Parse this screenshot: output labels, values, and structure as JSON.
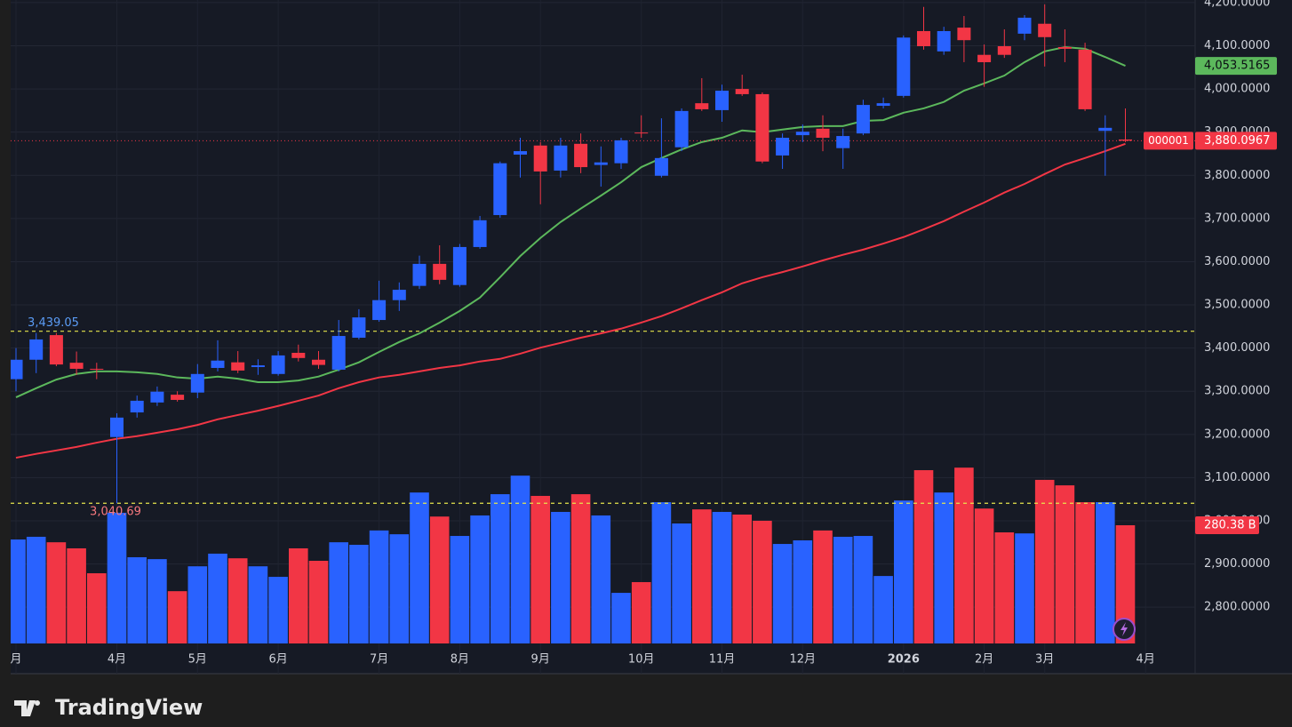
{
  "chart_data": {
    "type": "candlestick",
    "symbol": "000001",
    "brand": "TradingView",
    "ylim": [
      2716,
      4206
    ],
    "yticks": [
      {
        "value": 4200,
        "label": "4,200.0000"
      },
      {
        "value": 4100,
        "label": "4,100.0000"
      },
      {
        "value": 4000,
        "label": "4,000.0000"
      },
      {
        "value": 3900,
        "label": "3,900.0000"
      },
      {
        "value": 3800,
        "label": "3,800.0000"
      },
      {
        "value": 3700,
        "label": "3,700.0000"
      },
      {
        "value": 3600,
        "label": "3,600.0000"
      },
      {
        "value": 3500,
        "label": "3,500.0000"
      },
      {
        "value": 3400,
        "label": "3,400.0000"
      },
      {
        "value": 3300,
        "label": "3,300.0000"
      },
      {
        "value": 3200,
        "label": "3,200.0000"
      },
      {
        "value": 3100,
        "label": "3,100.0000"
      },
      {
        "value": 3000,
        "label": "3,000.0000"
      },
      {
        "value": 2900,
        "label": "2,900.0000"
      },
      {
        "value": 2800,
        "label": "2,800.0000"
      }
    ],
    "xticks": [
      {
        "value": 0,
        "label": "月"
      },
      {
        "value": 5,
        "label": "4月"
      },
      {
        "value": 9,
        "label": "5月"
      },
      {
        "value": 13,
        "label": "6月"
      },
      {
        "value": 18,
        "label": "7月"
      },
      {
        "value": 22,
        "label": "8月"
      },
      {
        "value": 26,
        "label": "9月"
      },
      {
        "value": 31,
        "label": "10月"
      },
      {
        "value": 35,
        "label": "11月"
      },
      {
        "value": 39,
        "label": "12月"
      },
      {
        "value": 44,
        "label": "2026"
      },
      {
        "value": 48,
        "label": "2月"
      },
      {
        "value": 51,
        "label": "3月"
      },
      {
        "value": 56,
        "label": "4月"
      }
    ],
    "grid": true,
    "up_color": "#2962ff",
    "down_color": "#f23645",
    "open": [
      3328,
      3373,
      3430,
      3366,
      3352,
      3194,
      3251,
      3274,
      3292,
      3297,
      3354,
      3367,
      3356,
      3340,
      3389,
      3373,
      3350,
      3424,
      3465,
      3511,
      3544,
      3595,
      3546,
      3634,
      3708,
      3848,
      3869,
      3811,
      3873,
      3824,
      3828,
      3899,
      3799,
      3865,
      3967,
      3951,
      4000,
      3988,
      3846,
      3893,
      3908,
      3863,
      3897,
      3961,
      3984,
      4134,
      4087,
      4142,
      4079,
      4099,
      4128,
      4151,
      4097,
      4091,
      3903,
      3883
    ],
    "high": [
      3400,
      3435,
      3435,
      3392,
      3366,
      3249,
      3290,
      3311,
      3300,
      3363,
      3418,
      3393,
      3374,
      3393,
      3408,
      3393,
      3465,
      3490,
      3556,
      3552,
      3614,
      3638,
      3641,
      3706,
      3832,
      3887,
      3877,
      3887,
      3897,
      3867,
      3887,
      3939,
      3932,
      3955,
      4025,
      4010,
      4033,
      3992,
      3897,
      3918,
      3939,
      3908,
      3975,
      3980,
      4124,
      4190,
      4144,
      4169,
      4103,
      4138,
      4171,
      4196,
      4138,
      4107,
      3939,
      3955
    ],
    "low": [
      3300,
      3342,
      3358,
      3338,
      3328,
      3040.69,
      3239,
      3266,
      3276,
      3284,
      3346,
      3342,
      3338,
      3336,
      3369,
      3352,
      3346,
      3420,
      3461,
      3486,
      3537,
      3548,
      3542,
      3630,
      3702,
      3795,
      3733,
      3795,
      3805,
      3774,
      3815,
      3887,
      3795,
      3856,
      3949,
      3924,
      3984,
      3828,
      3815,
      3877,
      3856,
      3815,
      3893,
      3955,
      3980,
      4091,
      4079,
      4062,
      4005,
      4072,
      4113,
      4052,
      4062,
      3949,
      3799,
      3877
    ],
    "close": [
      3373,
      3420,
      3362,
      3352,
      3350,
      3239,
      3278,
      3299,
      3280,
      3340,
      3371,
      3348,
      3360,
      3383,
      3377,
      3361,
      3428,
      3471,
      3511,
      3535,
      3595,
      3558,
      3634,
      3696,
      3828,
      3856,
      3809,
      3869,
      3819,
      3830,
      3881,
      3897,
      3840,
      3949,
      3953,
      3996,
      3988,
      3832,
      3887,
      3901,
      3887,
      3891,
      3963,
      3967,
      4119,
      4099,
      4134,
      4113,
      4062,
      4079,
      4165,
      4120,
      4093,
      3953,
      3910,
      3880.0967
    ],
    "last_price_label": "3,880.0967",
    "volume": {
      "values": [
        246.6,
        253,
        240,
        225.6,
        166.5,
        310,
        204.5,
        200,
        124,
        183,
        213,
        202,
        183,
        158,
        225.6,
        196,
        240,
        234,
        268,
        259,
        358,
        301,
        255,
        303.6,
        354,
        398,
        350,
        312,
        354,
        303.6,
        120,
        145.5,
        335,
        284.6,
        318,
        312,
        305.7,
        291,
        236,
        244.5,
        268,
        253,
        255,
        160,
        339,
        411,
        358,
        417,
        320,
        263.5,
        261,
        388,
        375,
        335,
        335,
        280.38
      ],
      "value_labels": [
        null,
        null,
        null,
        null,
        null,
        null,
        null,
        null,
        null,
        null,
        null,
        null,
        null,
        null,
        null,
        null,
        null,
        null,
        null,
        null,
        null,
        null,
        null,
        null,
        null,
        null,
        null,
        null,
        null,
        null,
        null,
        null,
        null,
        null,
        null,
        null,
        null,
        null,
        null,
        null,
        null,
        null,
        null,
        null,
        null,
        null,
        null,
        null,
        null,
        null,
        null,
        null,
        null,
        null,
        null,
        "280.38 B"
      ]
    },
    "series": [
      {
        "color": "#5cb85c",
        "last_label": "4,053.5165",
        "values": [
          3286,
          3307,
          3327,
          3340,
          3346,
          3346,
          3344,
          3340,
          3332,
          3329,
          3334,
          3329,
          3321,
          3321,
          3325,
          3334,
          3350,
          3367,
          3391,
          3414,
          3434,
          3459,
          3486,
          3517,
          3564,
          3613,
          3655,
          3692,
          3723,
          3753,
          3784,
          3819,
          3840,
          3860,
          3877,
          3887,
          3904,
          3900,
          3906,
          3912,
          3914,
          3914,
          3926,
          3928,
          3945,
          3955,
          3970,
          3996,
          4013,
          4031,
          4062,
          4087,
          4097,
          4093,
          4074,
          4053.5165
        ]
      },
      {
        "color": "#f23645",
        "values": [
          3146,
          3155,
          3163,
          3171,
          3181,
          3190,
          3196,
          3204,
          3212,
          3222,
          3235,
          3245,
          3255,
          3266,
          3278,
          3290,
          3307,
          3321,
          3332,
          3338,
          3346,
          3354,
          3360,
          3369,
          3375,
          3387,
          3401,
          3412,
          3424,
          3434,
          3445,
          3459,
          3474,
          3492,
          3511,
          3529,
          3550,
          3564,
          3576,
          3589,
          3603,
          3616,
          3628,
          3642,
          3657,
          3675,
          3694,
          3716,
          3737,
          3760,
          3780,
          3803,
          3825,
          3840,
          3856,
          3873
        ]
      }
    ],
    "price_lines": [
      {
        "value": 3439.05,
        "label": "3,439.05",
        "color": "#5b9cf6"
      },
      {
        "value": 3040.69,
        "label": "3,040.69",
        "color": "#f7787e"
      }
    ]
  }
}
